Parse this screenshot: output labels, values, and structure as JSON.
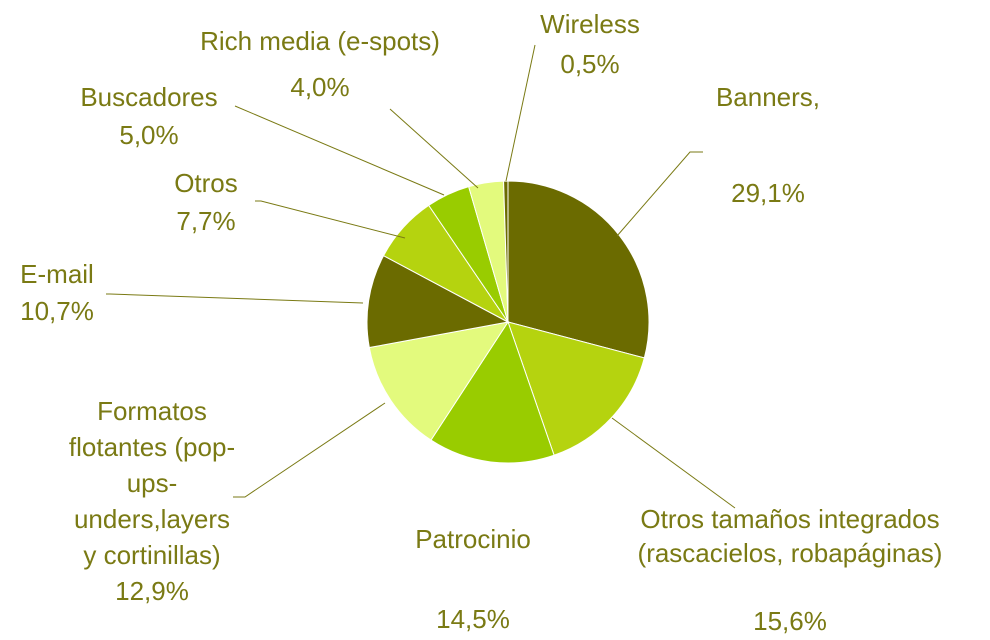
{
  "chart_data": {
    "type": "pie",
    "slices": [
      {
        "label": "Banners,",
        "value": 29.1,
        "value_label": "29,1%",
        "color": "#6b6b00"
      },
      {
        "label": "Otros tamaños integrados (rascacielos, robapáginas)",
        "value": 15.6,
        "value_label": "15,6%",
        "color": "#b5d30f"
      },
      {
        "label": "Patrocinio",
        "value": 14.5,
        "value_label": "14,5%",
        "color": "#99cc00"
      },
      {
        "label": "Formatos flotantes (pop-ups-unders,layers y cortinillas)",
        "value": 12.9,
        "value_label": "12,9%",
        "color": "#e3fa7d"
      },
      {
        "label": "E-mail",
        "value": 10.7,
        "value_label": "10,7%",
        "color": "#6b6b00"
      },
      {
        "label": "Otros",
        "value": 7.7,
        "value_label": "7,7%",
        "color": "#b5d30f"
      },
      {
        "label": "Buscadores",
        "value": 5.0,
        "value_label": "5,0%",
        "color": "#99cc00"
      },
      {
        "label": "Rich media (e-spots)",
        "value": 4.0,
        "value_label": "4,0%",
        "color": "#e3fa7d"
      },
      {
        "label": "Wireless",
        "value": 0.5,
        "value_label": "0,5%",
        "color": "#6b6b00"
      }
    ],
    "label_lines": [
      [
        "Banners,",
        "",
        "29,1%"
      ],
      [
        "Otros tamaños integrados",
        "(rascacielos, robapáginas)",
        "",
        "15,6%"
      ],
      [
        "Patrocinio",
        "",
        "14,5%"
      ],
      [
        "Formatos",
        "flotantes (pop-",
        "ups-",
        "unders,layers",
        "y cortinillas)",
        "12,9%"
      ],
      [
        "E-mail",
        "10,7%"
      ],
      [
        "Otros",
        "7,7%"
      ],
      [
        "Buscadores",
        "5,0%"
      ],
      [
        "Rich media (e-spots)",
        "4,0%"
      ],
      [
        "Wireless",
        "0,5%"
      ]
    ],
    "legend": "none",
    "start_angle": "12 o'clock",
    "direction": "clockwise"
  }
}
